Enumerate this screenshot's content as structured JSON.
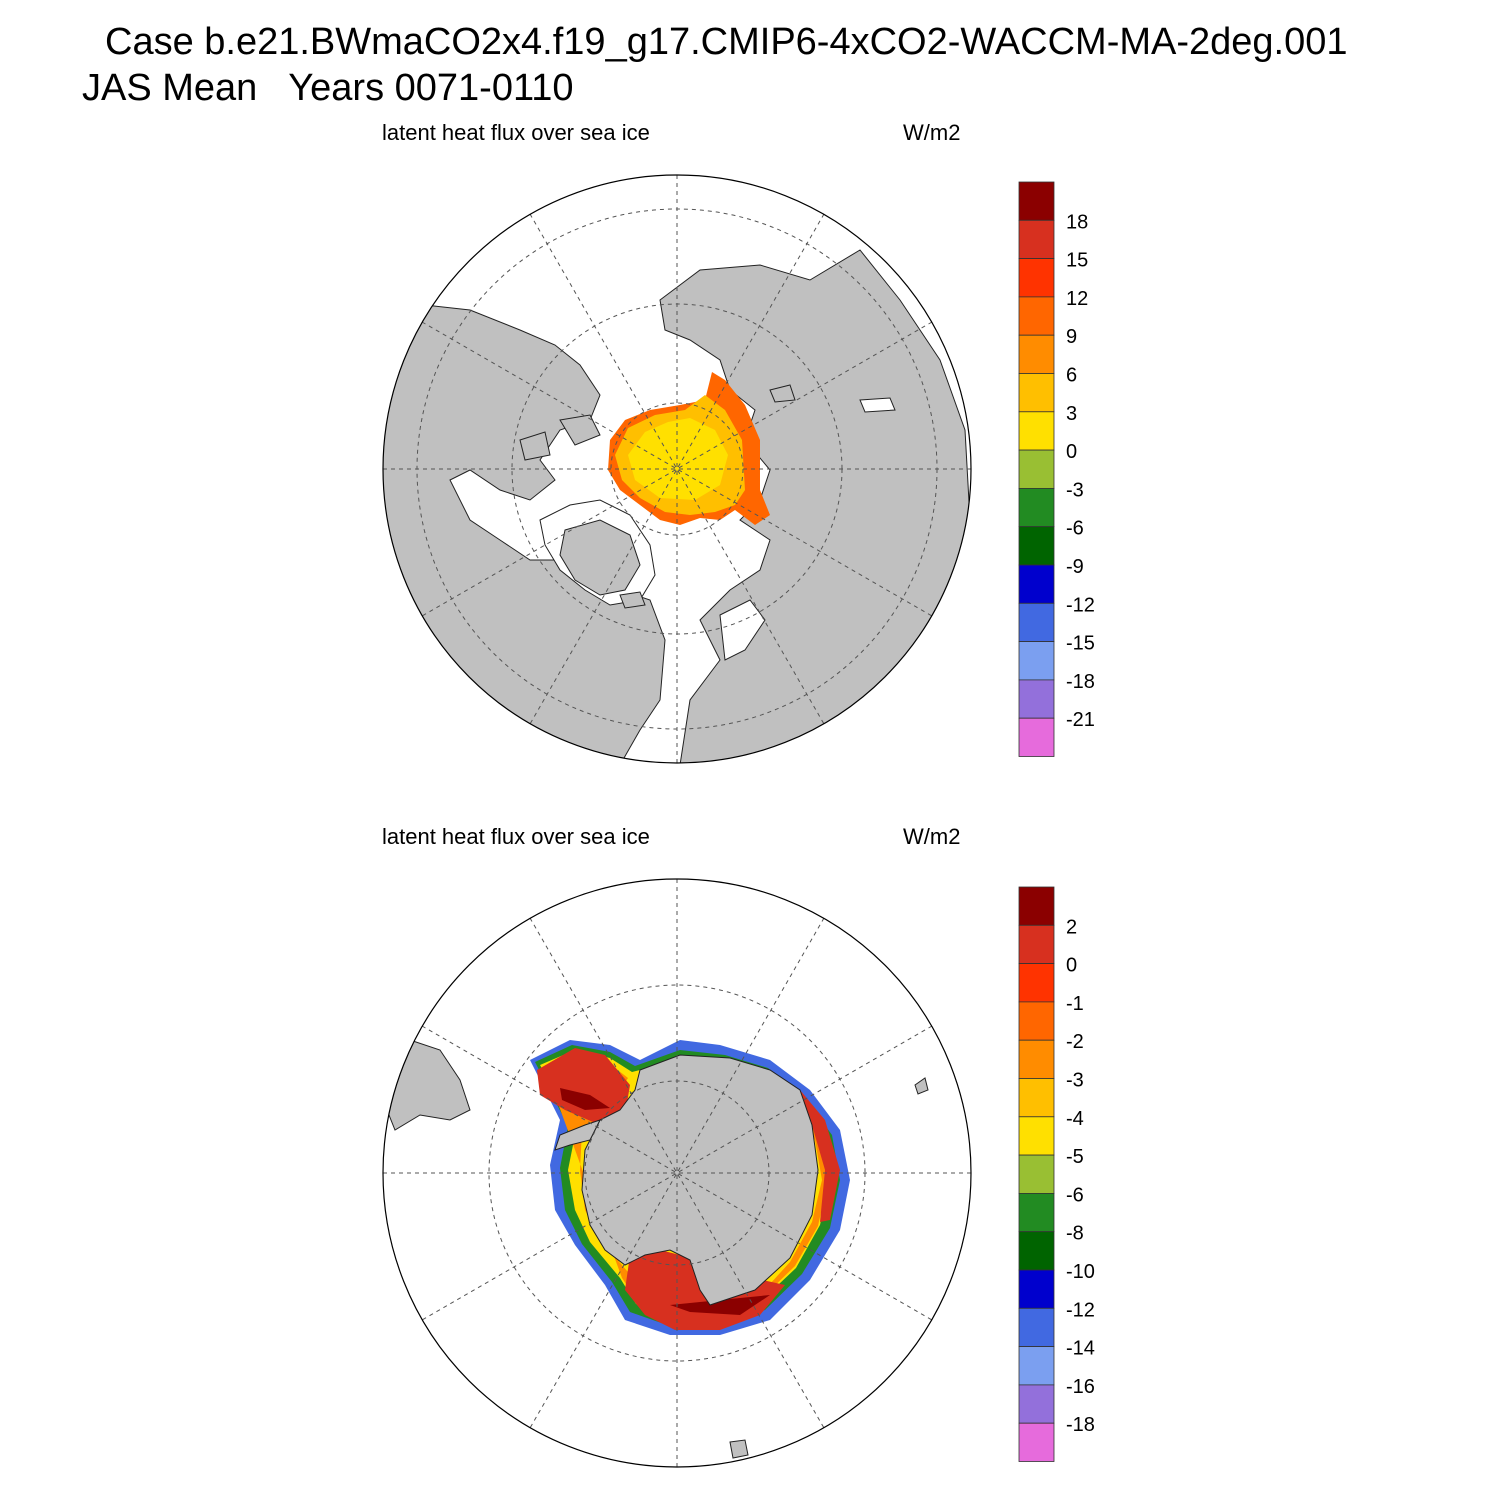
{
  "header": {
    "title_line1": "Case b.e21.BWmaCO2x4.f19_g17.CMIP6-4xCO2-WACCM-MA-2deg.001",
    "title_line2": "JAS Mean   Years 0071-0110"
  },
  "colors": {
    "land": "#c0c0c0",
    "ocean": "#ffffff",
    "palette": [
      "#8b0000",
      "#d7301f",
      "#ff3300",
      "#ff6600",
      "#ff8c00",
      "#ffbf00",
      "#ffe000",
      "#99bf33",
      "#228b22",
      "#006400",
      "#0000cd",
      "#4169e1",
      "#7b9ff0",
      "#9370db",
      "#e66bdc"
    ]
  },
  "chart_data": [
    {
      "type": "heatmap",
      "projection": "north-polar-stereographic",
      "region": "Arctic",
      "left_label": "latent heat flux over sea ice",
      "right_label": "W/m2",
      "colorbar_levels": [
        18,
        15,
        12,
        9,
        6,
        3,
        0,
        -3,
        -6,
        -9,
        -12,
        -15,
        -18,
        -21
      ],
      "field_summary": "Central Arctic pack mostly 0 to 6 W/m2 (yellow), rising to 9-15 W/m2 (orange-red) along the Barents/Kara ice edge",
      "value_range_shown": [
        0,
        15
      ]
    },
    {
      "type": "heatmap",
      "projection": "south-polar-stereographic",
      "region": "Antarctic",
      "left_label": "latent heat flux over sea ice",
      "right_label": "W/m2",
      "colorbar_levels": [
        2,
        0,
        -1,
        -2,
        -3,
        -4,
        -5,
        -6,
        -8,
        -10,
        -12,
        -14,
        -16,
        -18
      ],
      "field_summary": "Weddell and Ross Seas near 0 to 2 W/m2 (red), grading through yellow and green to -10 to -14 W/m2 (blue) at the outer ice edge",
      "value_range_shown": [
        -14,
        2
      ]
    }
  ]
}
